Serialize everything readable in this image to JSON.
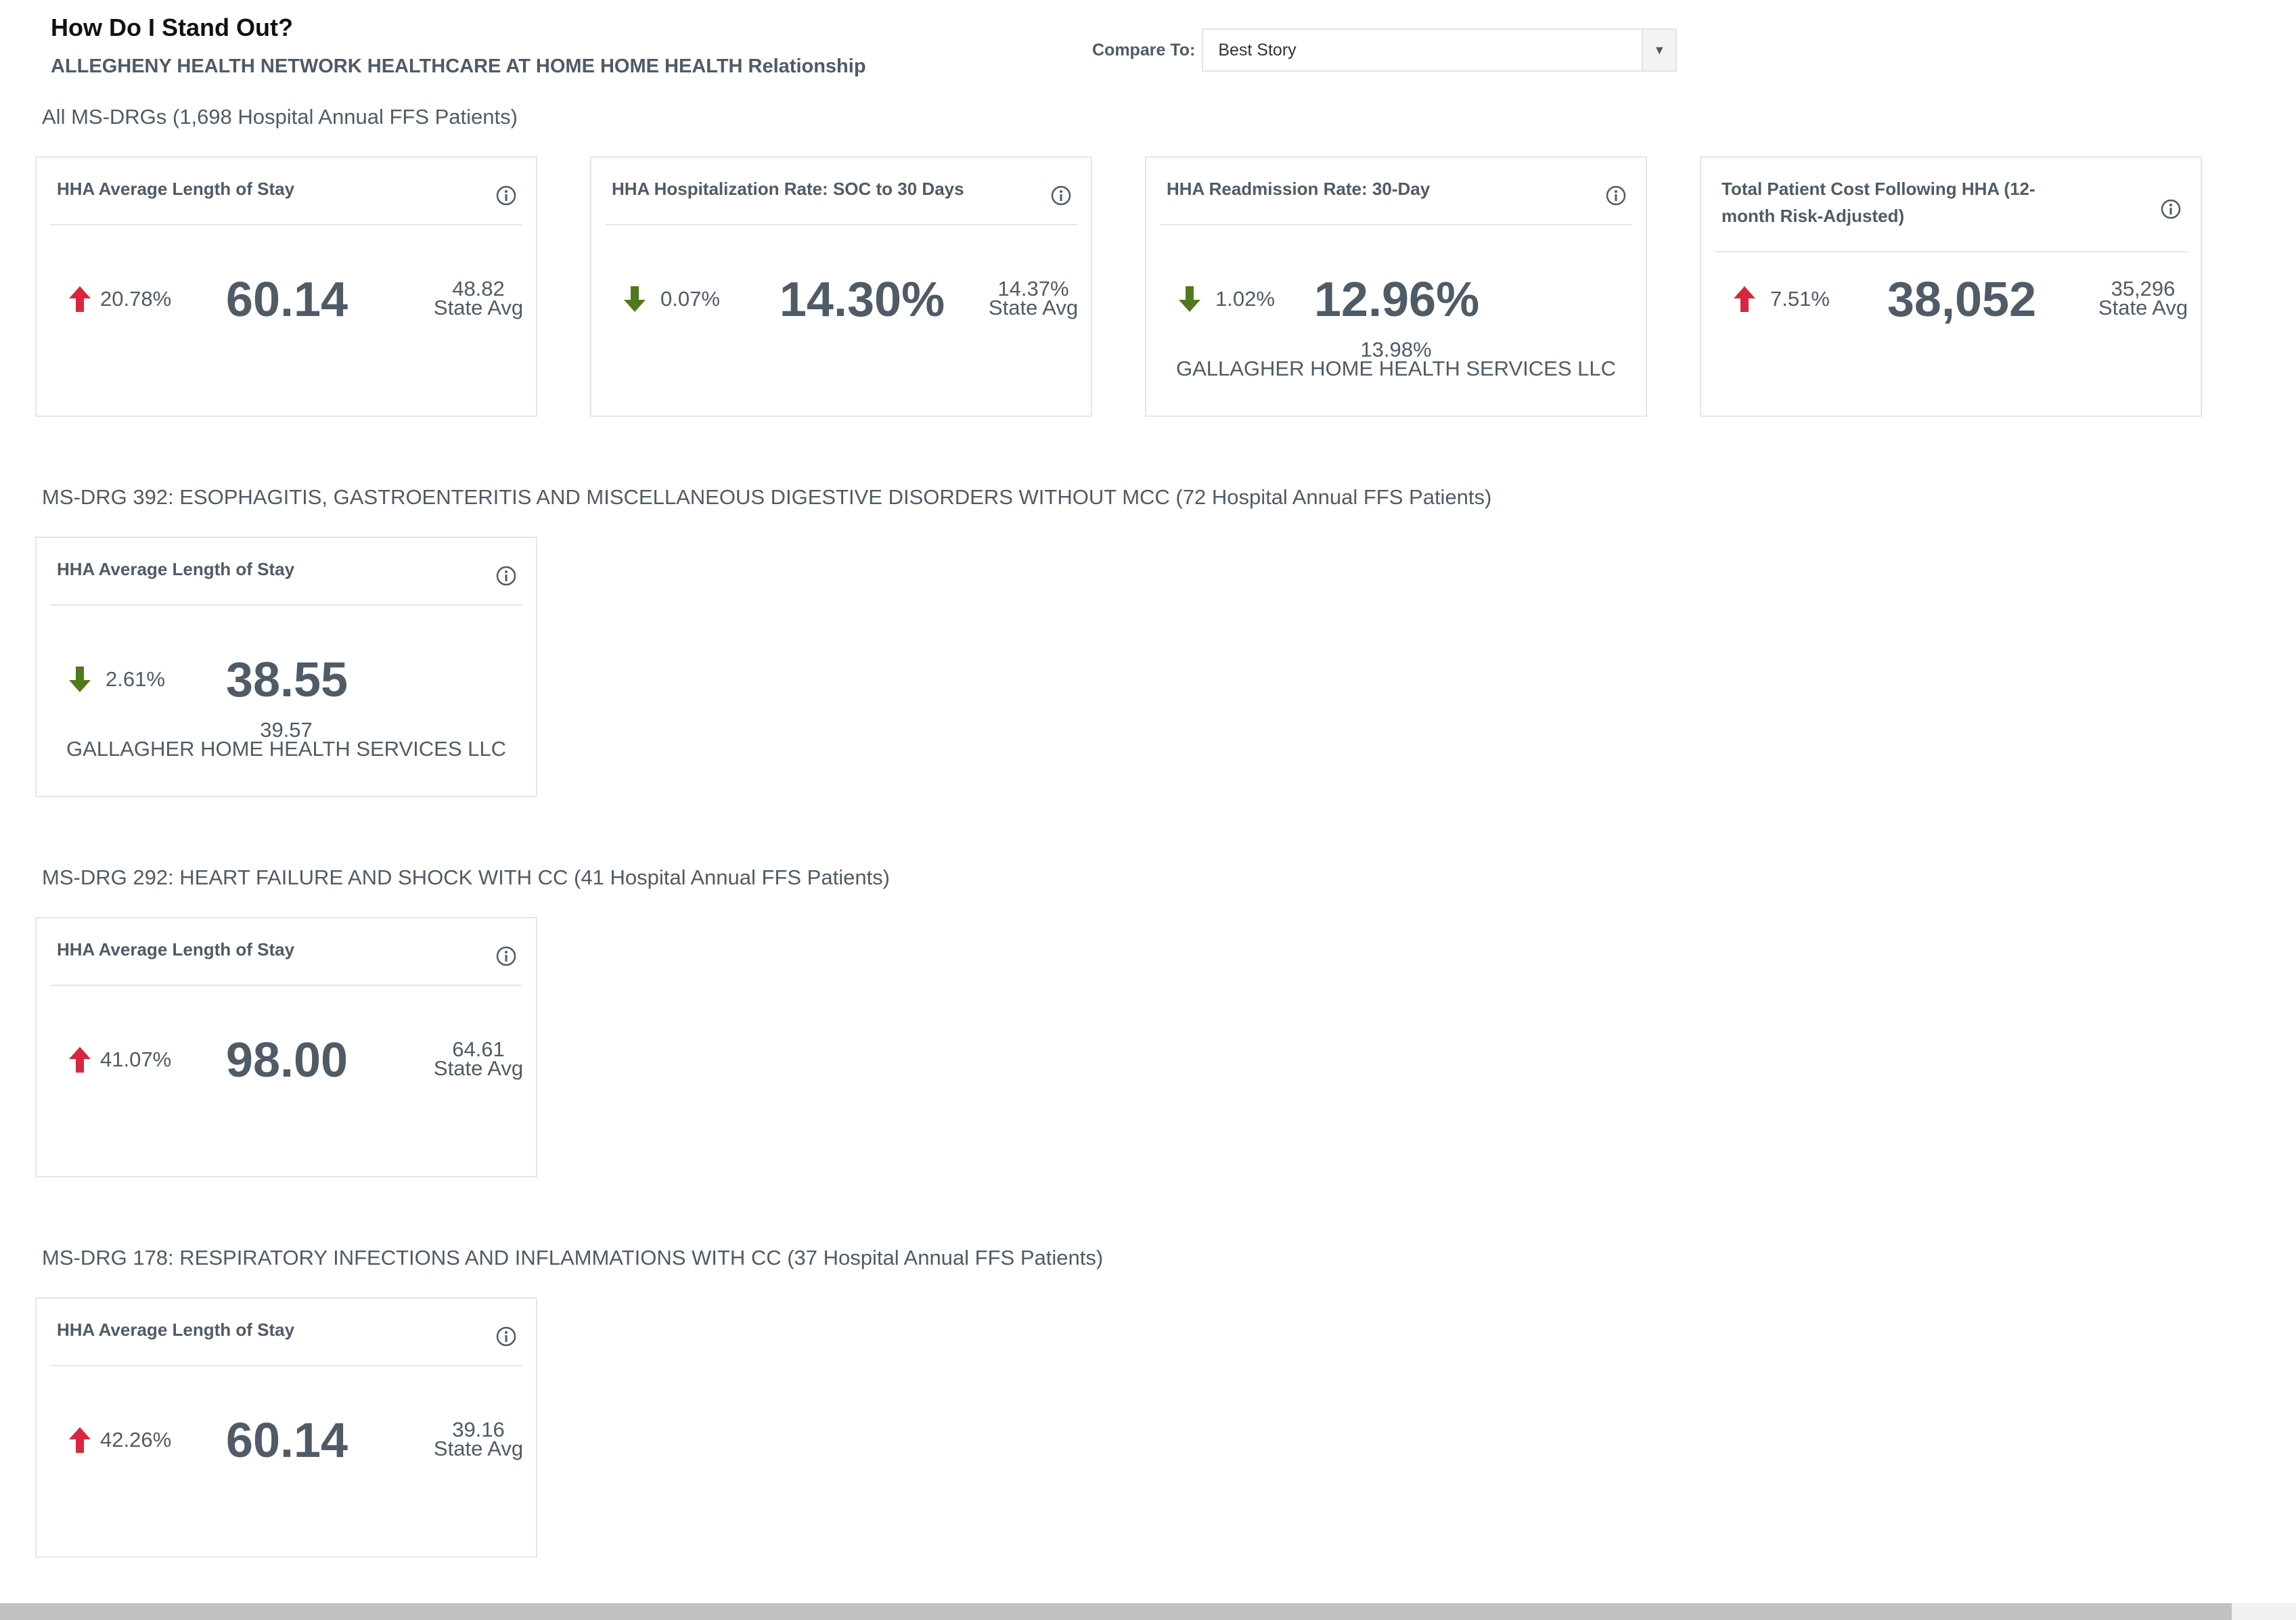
{
  "header": {
    "title": "How Do I Stand Out?",
    "subtitle": "ALLEGHENY HEALTH NETWORK HEALTHCARE AT HOME HOME HEALTH Relationship"
  },
  "compare": {
    "label": "Compare To:",
    "selected": "Best Story",
    "dropdown_icon": "caret-down-icon"
  },
  "colors": {
    "up_arrow": "#d9263e",
    "down_arrow": "#4e7a1b",
    "text": "#4f5b66",
    "border": "#e6e6e6"
  },
  "sections": [
    {
      "title": "All MS-DRGs (1,698 Hospital Annual FFS Patients)",
      "cards": [
        {
          "title": "HHA Average Length of Stay",
          "trend": "up",
          "pct": "20.78%",
          "value": "60.14",
          "compare_value": "48.82",
          "compare_label": "State Avg"
        },
        {
          "title": "HHA Hospitalization Rate: SOC to 30 Days",
          "trend": "down",
          "pct": "0.07%",
          "value": "14.30%",
          "compare_value": "14.37%",
          "compare_label": "State Avg"
        },
        {
          "title": "HHA Readmission Rate: 30-Day",
          "trend": "down",
          "pct": "1.02%",
          "value": "12.96%",
          "compare_value": "13.98%",
          "compare_label": "GALLAGHER HOME HEALTH SERVICES LLC"
        },
        {
          "title_line1": "Total Patient Cost Following HHA (12-",
          "title_line2": "month Risk-Adjusted)",
          "trend": "up",
          "pct": "7.51%",
          "value": "38,052",
          "compare_value": "35,296",
          "compare_label": "State Avg"
        }
      ]
    },
    {
      "title": "MS-DRG 392: ESOPHAGITIS, GASTROENTERITIS AND MISCELLANEOUS DIGESTIVE DISORDERS WITHOUT MCC (72 Hospital Annual FFS Patients)",
      "cards": [
        {
          "title": "HHA Average Length of Stay",
          "trend": "down",
          "pct": "2.61%",
          "value": "38.55",
          "compare_value": "39.57",
          "compare_label": "GALLAGHER HOME HEALTH SERVICES LLC"
        }
      ]
    },
    {
      "title": "MS-DRG 292: HEART FAILURE AND SHOCK WITH CC (41 Hospital Annual FFS Patients)",
      "cards": [
        {
          "title": "HHA Average Length of Stay",
          "trend": "up",
          "pct": "41.07%",
          "value": "98.00",
          "compare_value": "64.61",
          "compare_label": "State Avg"
        }
      ]
    },
    {
      "title": "MS-DRG 178: RESPIRATORY INFECTIONS AND INFLAMMATIONS WITH CC (37 Hospital Annual FFS Patients)",
      "cards": [
        {
          "title": "HHA Average Length of Stay",
          "trend": "up",
          "pct": "42.26%",
          "value": "60.14",
          "compare_value": "39.16",
          "compare_label": "State Avg"
        }
      ]
    }
  ]
}
